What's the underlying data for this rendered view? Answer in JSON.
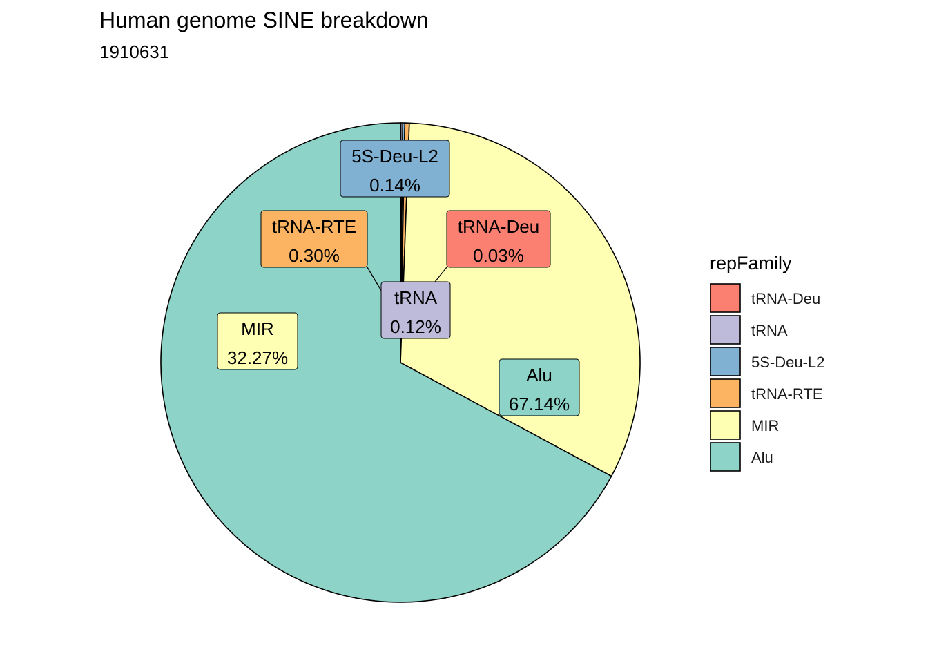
{
  "chart_data": {
    "type": "pie",
    "title": "Human genome SINE breakdown",
    "subtitle": "1910631",
    "legend_title": "repFamily",
    "legend_placement": "right",
    "slices": [
      {
        "name": "tRNA-Deu",
        "value": 0.03,
        "label": "tRNA-Deu",
        "percent_label": "0.03%",
        "color": "#FB8072"
      },
      {
        "name": "tRNA",
        "value": 0.12,
        "label": "tRNA",
        "percent_label": "0.12%",
        "color": "#BEBADA"
      },
      {
        "name": "5S-Deu-L2",
        "value": 0.14,
        "label": "5S-Deu-L2",
        "percent_label": "0.14%",
        "color": "#80B1D3"
      },
      {
        "name": "tRNA-RTE",
        "value": 0.3,
        "label": "tRNA-RTE",
        "percent_label": "0.30%",
        "color": "#FDB462"
      },
      {
        "name": "MIR",
        "value": 32.27,
        "label": "MIR",
        "percent_label": "32.27%",
        "color": "#FFFFB3"
      },
      {
        "name": "Alu",
        "value": 67.14,
        "label": "Alu",
        "percent_label": "67.14%",
        "color": "#8DD3C7"
      }
    ],
    "legend_order": [
      "tRNA-Deu",
      "tRNA",
      "5S-Deu-L2",
      "tRNA-RTE",
      "MIR",
      "Alu"
    ]
  }
}
